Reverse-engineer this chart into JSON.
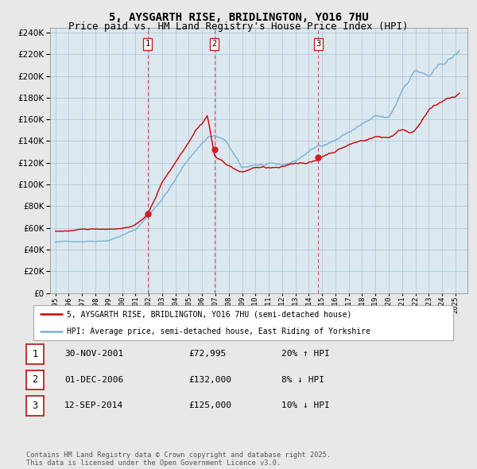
{
  "title": "5, AYSGARTH RISE, BRIDLINGTON, YO16 7HU",
  "subtitle": "Price paid vs. HM Land Registry's House Price Index (HPI)",
  "title_fontsize": 10,
  "subtitle_fontsize": 9,
  "background_color": "#e8e8e8",
  "plot_bg_color": "#dce8f0",
  "grid_color": "#b0c8d8",
  "property_color": "#cc0000",
  "hpi_color": "#7ab0d4",
  "ylim": [
    0,
    244000
  ],
  "yticks": [
    0,
    20000,
    40000,
    60000,
    80000,
    100000,
    120000,
    140000,
    160000,
    180000,
    200000,
    220000,
    240000
  ],
  "sale_markers": [
    {
      "date_num": 2001.917,
      "price": 72995,
      "label": "1"
    },
    {
      "date_num": 2006.917,
      "price": 132000,
      "label": "2"
    },
    {
      "date_num": 2014.708,
      "price": 125000,
      "label": "3"
    }
  ],
  "vline_dates": [
    2001.917,
    2006.917,
    2014.708
  ],
  "legend_property": "5, AYSGARTH RISE, BRIDLINGTON, YO16 7HU (semi-detached house)",
  "legend_hpi": "HPI: Average price, semi-detached house, East Riding of Yorkshire",
  "table_rows": [
    {
      "num": "1",
      "date": "30-NOV-2001",
      "price": "£72,995",
      "pct": "20% ↑ HPI"
    },
    {
      "num": "2",
      "date": "01-DEC-2006",
      "price": "£132,000",
      "pct": "8% ↓ HPI"
    },
    {
      "num": "3",
      "date": "12-SEP-2014",
      "price": "£125,000",
      "pct": "10% ↓ HPI"
    }
  ],
  "footnote": "Contains HM Land Registry data © Crown copyright and database right 2025.\nThis data is licensed under the Open Government Licence v3.0."
}
